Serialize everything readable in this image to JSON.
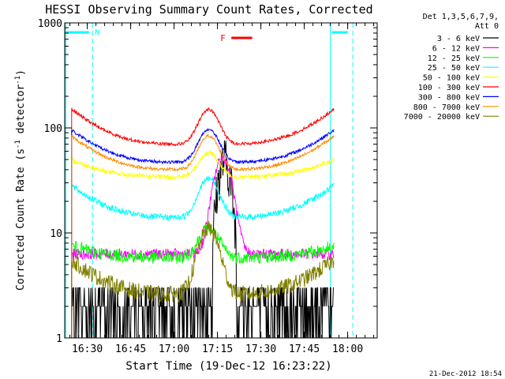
{
  "chart_data": {
    "type": "line",
    "title": "HESSI Observing Summary Count Rates, Corrected",
    "xlabel": "Start Time (19-Dec-12 16:23:22)",
    "ylabel": "Corrected Count Rate (s⁻¹ detector⁻¹)",
    "ylabel_parts": [
      "Corrected Count Rate (s",
      "-1",
      " detector",
      "-1",
      ")"
    ],
    "y_scale": "log",
    "ylim": [
      1,
      1000
    ],
    "xlim_minutes": [
      16.37,
      18.17
    ],
    "x_ticks": [
      {
        "t": 16.5,
        "label": "16:30"
      },
      {
        "t": 16.75,
        "label": "16:45"
      },
      {
        "t": 17.0,
        "label": "17:00"
      },
      {
        "t": 17.25,
        "label": "17:15"
      },
      {
        "t": 17.5,
        "label": "17:30"
      },
      {
        "t": 17.75,
        "label": "17:45"
      },
      {
        "t": 18.0,
        "label": "18:00"
      }
    ],
    "y_ticks": [
      {
        "v": 1,
        "label": "1"
      },
      {
        "v": 10,
        "label": "10"
      },
      {
        "v": 100,
        "label": "100"
      },
      {
        "v": 1000,
        "label": "1000"
      }
    ],
    "legend_header": [
      "Det 1,3,5,6,7,9,",
      "Att 0"
    ],
    "series": [
      {
        "name": "3 - 6 keV",
        "color": "#000000",
        "shape": "flare",
        "base": 1.8,
        "peak": 48,
        "peak_t": 17.29,
        "width": 0.05,
        "noise": 0.55
      },
      {
        "name": "6 - 12 keV",
        "color": "#ff00ff",
        "shape": "flare",
        "base": 6.3,
        "peak": 52,
        "peak_t": 17.28,
        "width": 0.065,
        "noise": 0.12
      },
      {
        "name": "12 - 25 keV",
        "color": "#00ff00",
        "shape": "orbit",
        "edge": 7.5,
        "trough": 5.8,
        "hump": 11,
        "noise": 0.14
      },
      {
        "name": "25 - 50 keV",
        "color": "#00ffff",
        "shape": "orbit",
        "edge": 28,
        "trough": 14,
        "hump": 33,
        "noise": 0.07
      },
      {
        "name": "50 - 100 keV",
        "color": "#ffff00",
        "shape": "orbit",
        "edge": 50,
        "trough": 34,
        "hump": 58,
        "noise": 0.05
      },
      {
        "name": "100 - 300 keV",
        "color": "#ff0000",
        "shape": "orbit",
        "edge": 150,
        "trough": 70,
        "hump": 150,
        "noise": 0.035
      },
      {
        "name": "300 - 800 keV",
        "color": "#0000ff",
        "shape": "orbit",
        "edge": 95,
        "trough": 47,
        "hump": 97,
        "noise": 0.035
      },
      {
        "name": "800 - 7000 keV",
        "color": "#ff8c00",
        "shape": "orbit",
        "edge": 83,
        "trough": 40,
        "hump": 84,
        "noise": 0.035
      },
      {
        "name": "7000 - 20000 keV",
        "color": "#808000",
        "shape": "orbit",
        "edge": 5.5,
        "trough": 2.6,
        "hump": 11,
        "noise": 0.18
      }
    ],
    "data_window": [
      16.41,
      17.92
    ],
    "eclipse_bars": [
      [
        16.37,
        16.51
      ],
      [
        17.91,
        18.0
      ]
    ],
    "eclipse_lines": [
      16.53,
      17.9,
      18.03
    ],
    "eclipse_color": "#00ffff",
    "night_label": "N",
    "night_label_t": 16.53,
    "flare_label": "F",
    "flare_bar": [
      17.33,
      17.45
    ],
    "flare_color": "#ff0000"
  },
  "footer": {
    "timestamp": "21-Dec-2012 18:54"
  }
}
